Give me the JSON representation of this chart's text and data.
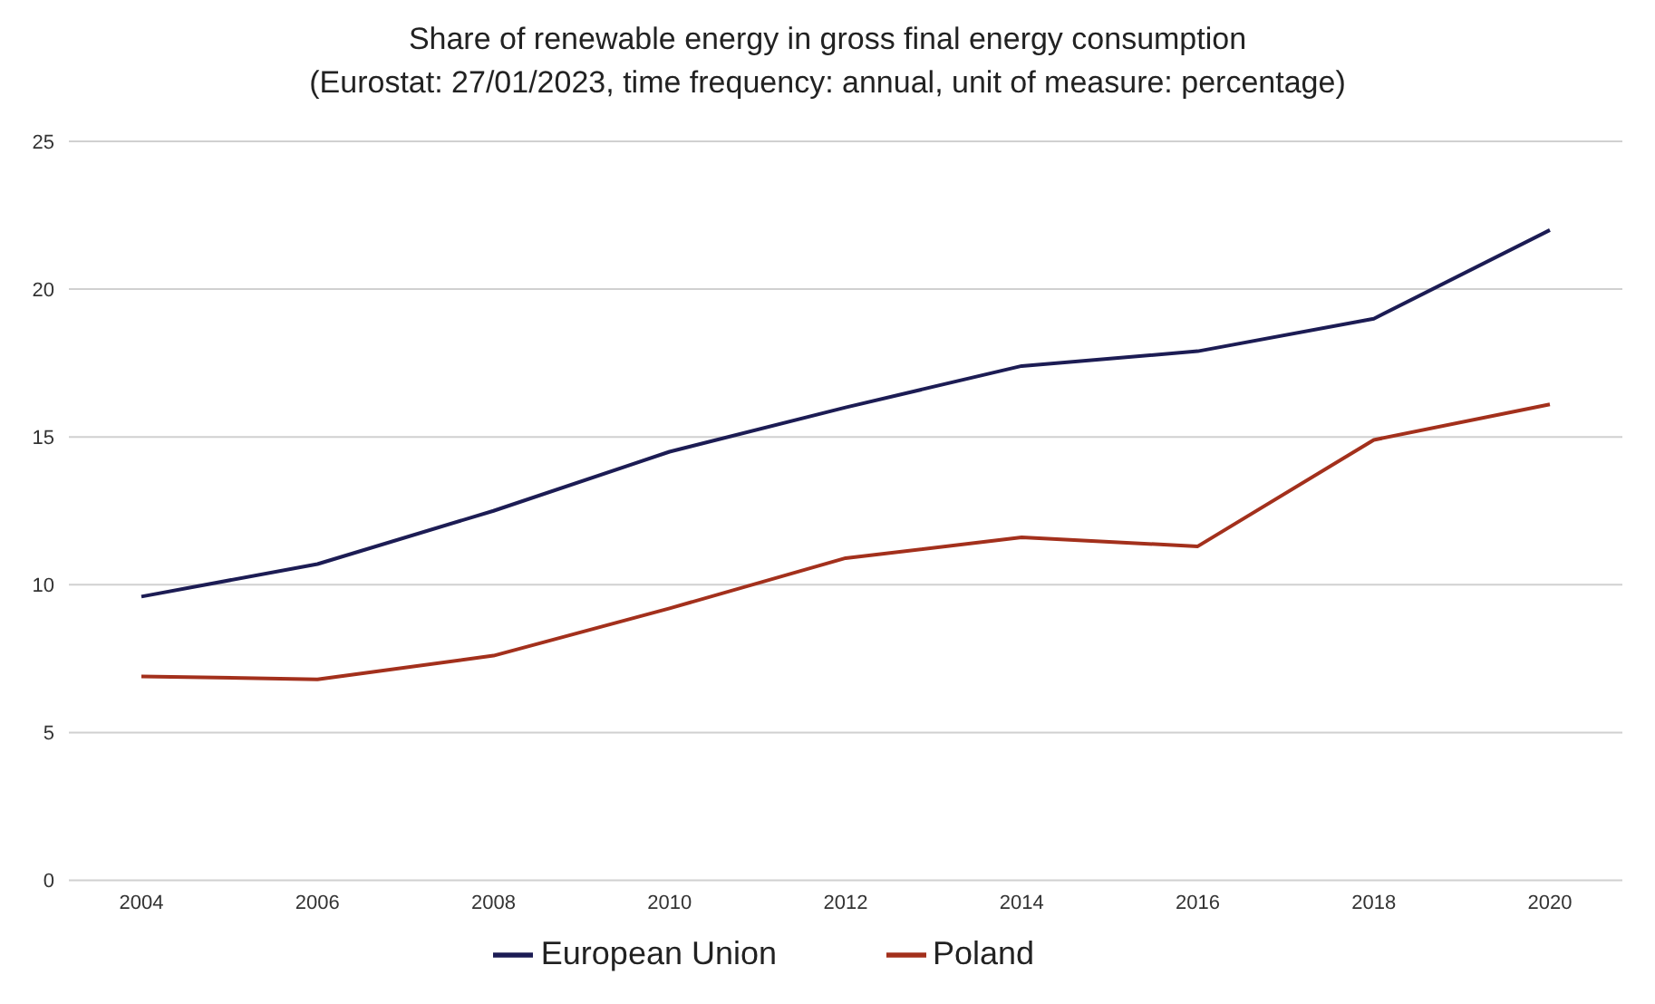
{
  "chart_data": {
    "type": "line",
    "title": "Share of renewable energy in gross final energy consumption",
    "subtitle": "(Eurostat: 27/01/2023, time frequency: annual, unit of measure: percentage)",
    "categories": [
      "2004",
      "2006",
      "2008",
      "2010",
      "2012",
      "2014",
      "2016",
      "2018",
      "2020"
    ],
    "series": [
      {
        "name": "European Union",
        "color": "#1c1c54",
        "values": [
          9.6,
          10.7,
          12.5,
          14.5,
          16.0,
          17.4,
          17.9,
          19.0,
          22.0
        ]
      },
      {
        "name": "Poland",
        "color": "#a3301c",
        "values": [
          6.9,
          6.8,
          7.6,
          9.2,
          10.9,
          11.6,
          11.3,
          14.9,
          16.1
        ]
      }
    ],
    "ylim": [
      0,
      25
    ],
    "yticks": [
      0,
      5,
      10,
      15,
      20,
      25
    ],
    "grid": "y",
    "legend": "bottom",
    "marker": "none",
    "line_style": "solid"
  }
}
